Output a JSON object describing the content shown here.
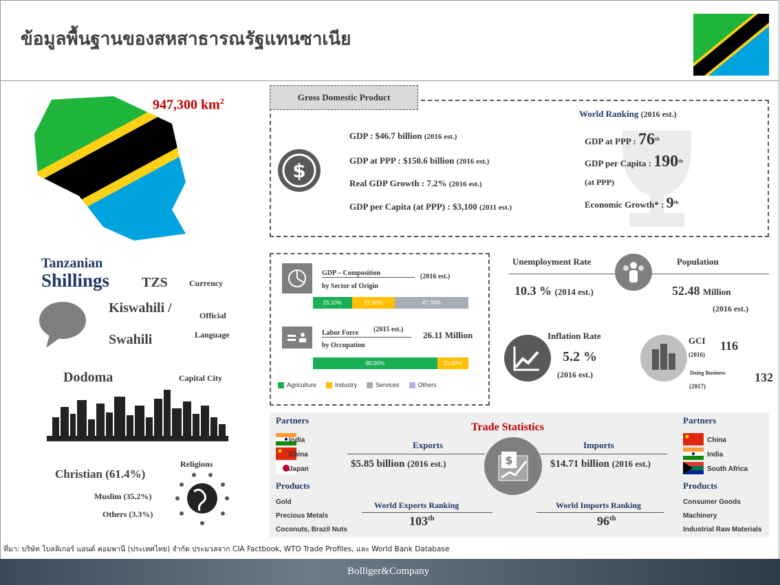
{
  "header": {
    "title": "ข้อมูลพื้นฐานของสหสาธารณรัฐแทนซาเนีย"
  },
  "area": {
    "value": "947,300 km",
    "superscript": "2"
  },
  "currency": {
    "line1": "Tanzanian",
    "line2": "Shillings",
    "code": "TZS",
    "label": "Currency"
  },
  "language": {
    "line1": "Kiswahili /",
    "line2": "Swahili",
    "label1": "Official",
    "label2": "Language"
  },
  "capital": {
    "name": "Dodoma",
    "label": "Capital City"
  },
  "religions": {
    "title": "Religions",
    "items": [
      "Christian (61.4%)",
      "Muslim (35.2%)",
      "Others (3.3%)"
    ]
  },
  "gdp": {
    "title": "Gross Domestic Product",
    "lines": [
      {
        "label": "GDP : $46.7 billion",
        "note": "(2016 est.)"
      },
      {
        "label": "GDP at PPP : $150.6 billion",
        "note": "(2016 est.)"
      },
      {
        "label": "Real GDP Growth : 7.2%",
        "note": "(2016 est.)"
      },
      {
        "label": "GDP per Capita (at PPP) : $3,100",
        "note": "(2011 est.)"
      }
    ],
    "ranking": {
      "title": "World Ranking",
      "note": "(2016 est.)",
      "rows": [
        {
          "label": "GDP at PPP :",
          "rank": 76,
          "suffix": "th"
        },
        {
          "label": "GDP per Capita :",
          "sub": "(at PPP)",
          "rank": 190,
          "suffix": "th"
        },
        {
          "label": "Economic Growth* :",
          "rank": 9,
          "suffix": "th"
        }
      ]
    }
  },
  "composition": {
    "title": "GDP – Composition",
    "note": "(2016 est.)",
    "subtitle": "by Sector of Origin",
    "values": [
      25.1,
      27.6,
      47.3
    ],
    "value_labels": [
      "25.10%",
      "27.60%",
      "47.30%"
    ]
  },
  "labor": {
    "title": "Labor Force",
    "note": "(2015 est.)",
    "subtitle": "by Occupation",
    "total": "26.11 Million",
    "values": [
      80,
      20
    ],
    "value_labels": [
      "80.00%",
      "20.00%"
    ]
  },
  "legend": [
    {
      "name": "Agriculture",
      "color": "#1aae55"
    },
    {
      "name": "Industry",
      "color": "#ffc000"
    },
    {
      "name": "Services",
      "color": "#a5adb8"
    },
    {
      "name": "Others",
      "color": "#b4b4e6"
    }
  ],
  "unemployment": {
    "title": "Unemployment Rate",
    "value": "10.3 %",
    "note": "(2014 est.)"
  },
  "population": {
    "title": "Population",
    "value": "52.48",
    "unit": "Million",
    "note": "(2016 est.)"
  },
  "inflation": {
    "title": "Inflation Rate",
    "value": "5.2 %",
    "note": "(2016 est.)"
  },
  "gci": {
    "title": "GCI",
    "note": "(2016)",
    "value": 116,
    "business_title": "Doing Business",
    "business_note": "(2017)",
    "business_value": 132
  },
  "trade": {
    "title": "Trade Statistics",
    "exports": {
      "partners_title": "Partners",
      "partners": [
        "India",
        "China",
        "Japan"
      ],
      "products_title": "Products",
      "products": [
        "Gold",
        "Precious Metals",
        "Coconuts, Brazil Nuts"
      ],
      "title": "Exports",
      "value": "$5.85 billion",
      "note": "(2016 est.)",
      "ranking_title": "World Exports Ranking",
      "rank": 103,
      "suffix": "th"
    },
    "imports": {
      "partners_title": "Partners",
      "partners": [
        "China",
        "India",
        "South Africa"
      ],
      "products_title": "Products",
      "products": [
        "Consumer Goods",
        "Machinery",
        "Industrial Raw Materials"
      ],
      "title": "Imports",
      "value": "$14.71 billion",
      "note": "(2016 est.)",
      "ranking_title": "World Imports Ranking",
      "rank": 96,
      "suffix": "th"
    }
  },
  "source": "ที่มา: บริษัท โบลลิเกอร์ แอนด์ คอมพานี (ประเทศไทย) จำกัด ประมวลจาก CIA Factbook, WTO Trade Profiles, และ World Bank Database",
  "footer": {
    "brand": "Bolliger&Company"
  }
}
